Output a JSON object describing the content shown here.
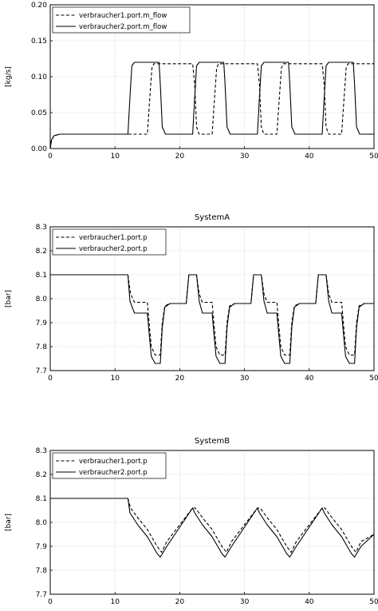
{
  "chart_data": [
    {
      "type": "line",
      "title": "",
      "ylabel": "[kg/s]",
      "xlabel": "",
      "xlim": [
        0,
        50
      ],
      "ylim": [
        0,
        0.2
      ],
      "xticks": [
        0,
        10,
        20,
        30,
        40,
        50
      ],
      "yticks": [
        0.0,
        0.05,
        0.1,
        0.15,
        0.2
      ],
      "ytick_labels": [
        "0.00",
        "0.05",
        "0.10",
        "0.15",
        "0.20"
      ],
      "grid": true,
      "legend": "top-left",
      "series": [
        {
          "name": "verbraucher1.port.m_flow",
          "dash": "dashed",
          "x": [
            0,
            0.2,
            0.6,
            1.5,
            12,
            12.3,
            12.6,
            13.0,
            15.0,
            15.3,
            15.7,
            16.0,
            22,
            22.3,
            22.6,
            23.0,
            25.0,
            25.3,
            25.7,
            26.0,
            32,
            32.3,
            32.6,
            33.0,
            35.0,
            35.3,
            35.7,
            36.0,
            42,
            42.3,
            42.6,
            43.0,
            45.0,
            45.3,
            45.7,
            46.0,
            50
          ],
          "y": [
            0,
            0.012,
            0.018,
            0.02,
            0.02,
            0.02,
            0.02,
            0.02,
            0.02,
            0.06,
            0.112,
            0.118,
            0.118,
            0.09,
            0.03,
            0.02,
            0.02,
            0.06,
            0.112,
            0.118,
            0.118,
            0.09,
            0.03,
            0.02,
            0.02,
            0.06,
            0.112,
            0.118,
            0.118,
            0.09,
            0.03,
            0.02,
            0.02,
            0.06,
            0.112,
            0.118,
            0.118
          ]
        },
        {
          "name": "verbraucher2.port.m_flow",
          "dash": "solid",
          "x": [
            0,
            0.2,
            0.6,
            1.5,
            12,
            12.3,
            12.6,
            13.0,
            16.8,
            17.0,
            17.3,
            17.8,
            22,
            22.3,
            22.6,
            23.0,
            26.8,
            27.0,
            27.3,
            27.8,
            32,
            32.3,
            32.6,
            33.0,
            36.8,
            37.0,
            37.3,
            37.8,
            42,
            42.3,
            42.6,
            43.0,
            46.8,
            47.0,
            47.3,
            47.8,
            50
          ],
          "y": [
            0,
            0.012,
            0.018,
            0.02,
            0.02,
            0.07,
            0.115,
            0.12,
            0.12,
            0.09,
            0.03,
            0.02,
            0.02,
            0.07,
            0.115,
            0.12,
            0.12,
            0.09,
            0.03,
            0.02,
            0.02,
            0.07,
            0.115,
            0.12,
            0.12,
            0.09,
            0.03,
            0.02,
            0.02,
            0.07,
            0.115,
            0.12,
            0.12,
            0.09,
            0.03,
            0.02,
            0.02
          ]
        }
      ]
    },
    {
      "type": "line",
      "title": "SystemA",
      "ylabel": "[bar]",
      "xlabel": "",
      "xlim": [
        0,
        50
      ],
      "ylim": [
        7.7,
        8.3
      ],
      "xticks": [
        0,
        10,
        20,
        30,
        40,
        50
      ],
      "yticks": [
        7.7,
        7.8,
        7.9,
        8.0,
        8.1,
        8.2,
        8.3
      ],
      "ytick_labels": [
        "7.7",
        "7.8",
        "7.9",
        "8.0",
        "8.1",
        "8.2",
        "8.3"
      ],
      "grid": true,
      "legend": "top-left",
      "series": [
        {
          "name": "verbraucher1.port.p",
          "dash": "dashed",
          "x": [
            0,
            12,
            12.4,
            13,
            15,
            15.3,
            15.6,
            16.2,
            17.0,
            17.3,
            17.7,
            18.5,
            21,
            21.4,
            22.6,
            23.0,
            23.5,
            25,
            25.3,
            25.6,
            26.2,
            27.0,
            27.3,
            27.7,
            28.5,
            31,
            31.4,
            32.6,
            33.0,
            33.5,
            35,
            35.3,
            35.6,
            36.2,
            37.0,
            37.3,
            37.7,
            38.5,
            41,
            41.4,
            42.6,
            43.0,
            43.5,
            45,
            45.3,
            45.6,
            46.2,
            47.0,
            47.3,
            47.7,
            48.5,
            50
          ],
          "y": [
            8.1,
            8.1,
            8.02,
            7.985,
            7.985,
            7.89,
            7.8,
            7.765,
            7.765,
            7.9,
            7.97,
            7.98,
            7.98,
            8.1,
            8.1,
            8.02,
            7.985,
            7.985,
            7.89,
            7.8,
            7.765,
            7.765,
            7.9,
            7.97,
            7.98,
            7.98,
            8.1,
            8.1,
            8.02,
            7.985,
            7.985,
            7.89,
            7.8,
            7.765,
            7.765,
            7.9,
            7.97,
            7.98,
            7.98,
            8.1,
            8.1,
            8.02,
            7.985,
            7.985,
            7.89,
            7.8,
            7.765,
            7.765,
            7.9,
            7.97,
            7.98,
            7.98
          ]
        },
        {
          "name": "verbraucher2.port.p",
          "dash": "solid",
          "x": [
            0,
            12,
            12.3,
            13,
            15,
            15.3,
            15.6,
            16.2,
            17.0,
            17.3,
            17.7,
            18.5,
            21,
            21.4,
            22.6,
            23.0,
            23.5,
            25,
            25.3,
            25.6,
            26.2,
            27.0,
            27.3,
            27.7,
            28.5,
            31,
            31.4,
            32.6,
            33.0,
            33.5,
            35,
            35.3,
            35.6,
            36.2,
            37.0,
            37.3,
            37.7,
            38.5,
            41,
            41.4,
            42.6,
            43.0,
            43.5,
            45,
            45.3,
            45.6,
            46.2,
            47.0,
            47.3,
            47.7,
            48.5,
            50
          ],
          "y": [
            8.1,
            8.1,
            7.99,
            7.94,
            7.94,
            7.85,
            7.76,
            7.73,
            7.73,
            7.88,
            7.965,
            7.98,
            7.98,
            8.1,
            8.1,
            7.99,
            7.94,
            7.94,
            7.85,
            7.76,
            7.73,
            7.73,
            7.88,
            7.965,
            7.98,
            7.98,
            8.1,
            8.1,
            7.99,
            7.94,
            7.94,
            7.85,
            7.76,
            7.73,
            7.73,
            7.88,
            7.965,
            7.98,
            7.98,
            8.1,
            8.1,
            7.99,
            7.94,
            7.94,
            7.85,
            7.76,
            7.73,
            7.73,
            7.88,
            7.965,
            7.98,
            7.98
          ]
        }
      ]
    },
    {
      "type": "line",
      "title": "SystemB",
      "ylabel": "[bar]",
      "xlabel": "",
      "xlim": [
        0,
        50
      ],
      "ylim": [
        7.7,
        8.3
      ],
      "xticks": [
        0,
        10,
        20,
        30,
        40,
        50
      ],
      "yticks": [
        7.7,
        7.8,
        7.9,
        8.0,
        8.1,
        8.2,
        8.3
      ],
      "ytick_labels": [
        "7.7",
        "7.8",
        "7.9",
        "8.0",
        "8.1",
        "8.2",
        "8.3"
      ],
      "grid": true,
      "legend": "top-left",
      "series": [
        {
          "name": "verbraucher1.port.p",
          "dash": "dashed",
          "x": [
            0,
            12,
            12.4,
            13.5,
            15,
            16.5,
            17.2,
            18,
            20,
            22,
            22.4,
            23.5,
            25,
            26.5,
            27.2,
            28,
            30,
            32,
            32.4,
            33.5,
            35,
            36.5,
            37.2,
            38,
            40,
            42,
            42.4,
            43.5,
            45,
            46.5,
            47.2,
            48,
            50
          ],
          "y": [
            8.1,
            8.1,
            8.06,
            8.02,
            7.97,
            7.9,
            7.875,
            7.92,
            7.99,
            8.06,
            8.06,
            8.02,
            7.97,
            7.9,
            7.875,
            7.92,
            7.99,
            8.06,
            8.06,
            8.02,
            7.97,
            7.9,
            7.875,
            7.92,
            7.99,
            8.06,
            8.06,
            8.02,
            7.97,
            7.9,
            7.875,
            7.92,
            7.95
          ]
        },
        {
          "name": "verbraucher2.port.p",
          "dash": "solid",
          "x": [
            0,
            12,
            12.3,
            13.5,
            15,
            16.5,
            17.0,
            18,
            20,
            22,
            22.3,
            23.5,
            25,
            26.5,
            27.0,
            28,
            30,
            32,
            32.3,
            33.5,
            35,
            36.5,
            37.0,
            38,
            40,
            42,
            42.3,
            43.5,
            45,
            46.5,
            47.0,
            48,
            50
          ],
          "y": [
            8.1,
            8.1,
            8.04,
            7.99,
            7.94,
            7.87,
            7.855,
            7.9,
            7.98,
            8.06,
            8.04,
            7.99,
            7.94,
            7.87,
            7.855,
            7.9,
            7.98,
            8.06,
            8.04,
            7.99,
            7.94,
            7.87,
            7.855,
            7.9,
            7.98,
            8.06,
            8.04,
            7.99,
            7.94,
            7.87,
            7.855,
            7.9,
            7.95
          ]
        }
      ]
    }
  ]
}
